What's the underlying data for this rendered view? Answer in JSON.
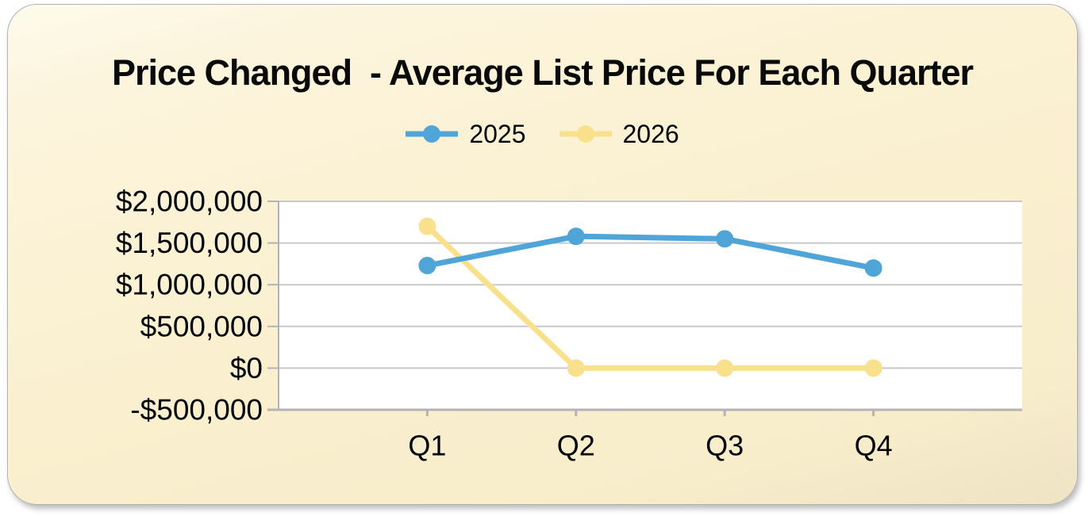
{
  "chart_data": {
    "type": "line",
    "title": "Price Changed  - Average List Price For Each Quarter",
    "categories": [
      "Q1",
      "Q2",
      "Q3",
      "Q4"
    ],
    "series": [
      {
        "name": "2025",
        "color": "#4FA4D8",
        "values": [
          1230000,
          1580000,
          1550000,
          1200000
        ]
      },
      {
        "name": "2026",
        "color": "#F8E08C",
        "values": [
          1700000,
          0,
          0,
          0
        ]
      }
    ],
    "ylim": [
      -500000,
      2000000
    ],
    "ytick_step": 500000,
    "ytick_labels": [
      "$2,000,000",
      "$1,500,000",
      "$1,000,000",
      "$500,000",
      "$0",
      "-$500,000"
    ],
    "xlabel": "",
    "ylabel": "",
    "grid": true,
    "legend_position": "top-center",
    "plot_bg": "#FFFFFF",
    "grid_color": "#C9C9C9",
    "axis_color": "#B3B3B3",
    "text_color": "#000000",
    "card_bg": "#FAF0CF",
    "line_width": 7,
    "marker_radius": 11
  }
}
